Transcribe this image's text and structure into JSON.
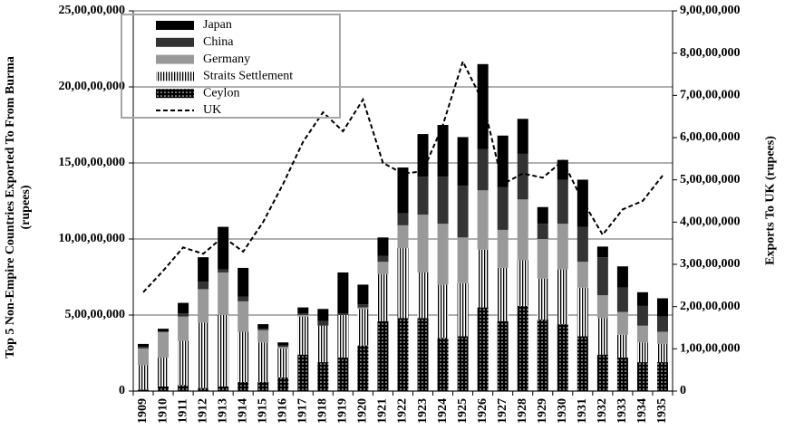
{
  "chart_data": {
    "type": "bar",
    "stacked": true,
    "ylabel": "Top 5 Non-Empire Countries Exported To From Burma (rupees)",
    "y2label": "Exports To UK (rupees)",
    "categories": [
      "1909",
      "1910",
      "1911",
      "1912",
      "1913",
      "1914",
      "1915",
      "1916",
      "1917",
      "1918",
      "1919",
      "1920",
      "1921",
      "1922",
      "1923",
      "1924",
      "1925",
      "1926",
      "1927",
      "1928",
      "1929",
      "1930",
      "1931",
      "1932",
      "1933",
      "1934",
      "1935"
    ],
    "series": [
      {
        "name": "Japan",
        "color": "#000000",
        "pattern": "solid",
        "values": [
          2000000,
          2000000,
          7000000,
          16000000,
          28000000,
          19000000,
          3000000,
          2000000,
          4000000,
          8000000,
          27000000,
          13000000,
          12000000,
          30000000,
          28000000,
          34000000,
          32000000,
          56000000,
          34000000,
          23000000,
          11000000,
          13000000,
          31000000,
          7000000,
          14000000,
          9000000,
          12000000
        ]
      },
      {
        "name": "China",
        "color": "#333333",
        "pattern": "solid",
        "values": [
          1000000,
          0,
          2000000,
          5000000,
          2000000,
          3000000,
          1000000,
          1000000,
          1000000,
          3000000,
          1000000,
          2000000,
          4000000,
          8000000,
          25000000,
          31000000,
          34000000,
          27000000,
          28000000,
          30000000,
          10000000,
          29000000,
          23000000,
          25000000,
          16000000,
          13000000,
          10000000
        ]
      },
      {
        "name": "Germany",
        "color": "#999999",
        "pattern": "solid",
        "values": [
          11000000,
          17000000,
          16000000,
          22000000,
          28000000,
          20000000,
          8000000,
          1000000,
          1000000,
          0,
          0,
          1000000,
          8000000,
          15000000,
          38000000,
          40000000,
          30000000,
          39000000,
          25000000,
          40000000,
          26000000,
          30000000,
          17000000,
          15000000,
          15000000,
          11000000,
          8000000
        ]
      },
      {
        "name": "Straits Settlement",
        "color": "#000000",
        "pattern": "vertical-lines",
        "values": [
          16000000,
          19000000,
          29000000,
          43000000,
          47000000,
          33000000,
          26000000,
          19000000,
          25000000,
          24000000,
          28000000,
          24000000,
          31000000,
          46000000,
          30000000,
          35000000,
          35000000,
          38000000,
          35000000,
          30000000,
          27000000,
          36000000,
          32000000,
          24000000,
          15000000,
          13000000,
          12000000
        ]
      },
      {
        "name": "Ceylon",
        "color": "#000000",
        "pattern": "dots",
        "values": [
          1000000,
          3000000,
          4000000,
          2000000,
          3000000,
          6000000,
          6000000,
          9000000,
          24000000,
          19000000,
          22000000,
          30000000,
          46000000,
          48000000,
          48000000,
          35000000,
          36000000,
          55000000,
          46000000,
          56000000,
          47000000,
          44000000,
          36000000,
          24000000,
          22000000,
          19000000,
          19000000
        ]
      },
      {
        "name": "UK",
        "color": "#000000",
        "type": "line",
        "line_style": "dashed",
        "axis": "y2",
        "values": [
          23400000,
          28500000,
          34000000,
          32500000,
          36500000,
          33000000,
          40000000,
          49000000,
          59000000,
          66000000,
          61500000,
          69000000,
          54000000,
          51500000,
          52000000,
          63000000,
          78000000,
          68500000,
          49000000,
          51500000,
          50500000,
          54500000,
          45000000,
          37000000,
          43000000,
          45000000,
          51000000
        ]
      }
    ],
    "ylim": [
      0,
      250000000
    ],
    "yticks": [
      0,
      {
        "value": 50000000,
        "label": "5,00,00,000"
      },
      {
        "value": 100000000,
        "label": "10,00,00,000"
      },
      {
        "value": 150000000,
        "label": "15,00,00,000"
      },
      {
        "value": 200000000,
        "label": "20,00,00,000"
      },
      {
        "value": 250000000,
        "label": "25,00,00,000"
      }
    ],
    "y2lim": [
      0,
      90000000
    ],
    "y2ticks": [
      0,
      {
        "value": 10000000,
        "label": "1,00,00,000"
      },
      {
        "value": 20000000,
        "label": "2,00,00,000"
      },
      {
        "value": 30000000,
        "label": "3,00,00,000"
      },
      {
        "value": 40000000,
        "label": "4,00,00,000"
      },
      {
        "value": 50000000,
        "label": "5,00,00,000"
      },
      {
        "value": 60000000,
        "label": "6,00,00,000"
      },
      {
        "value": 70000000,
        "label": "7,00,00,000"
      },
      {
        "value": 80000000,
        "label": "8,00,00,000"
      },
      {
        "value": 90000000,
        "label": "9,00,00,000"
      }
    ],
    "grid": true,
    "legend": "top-left"
  }
}
